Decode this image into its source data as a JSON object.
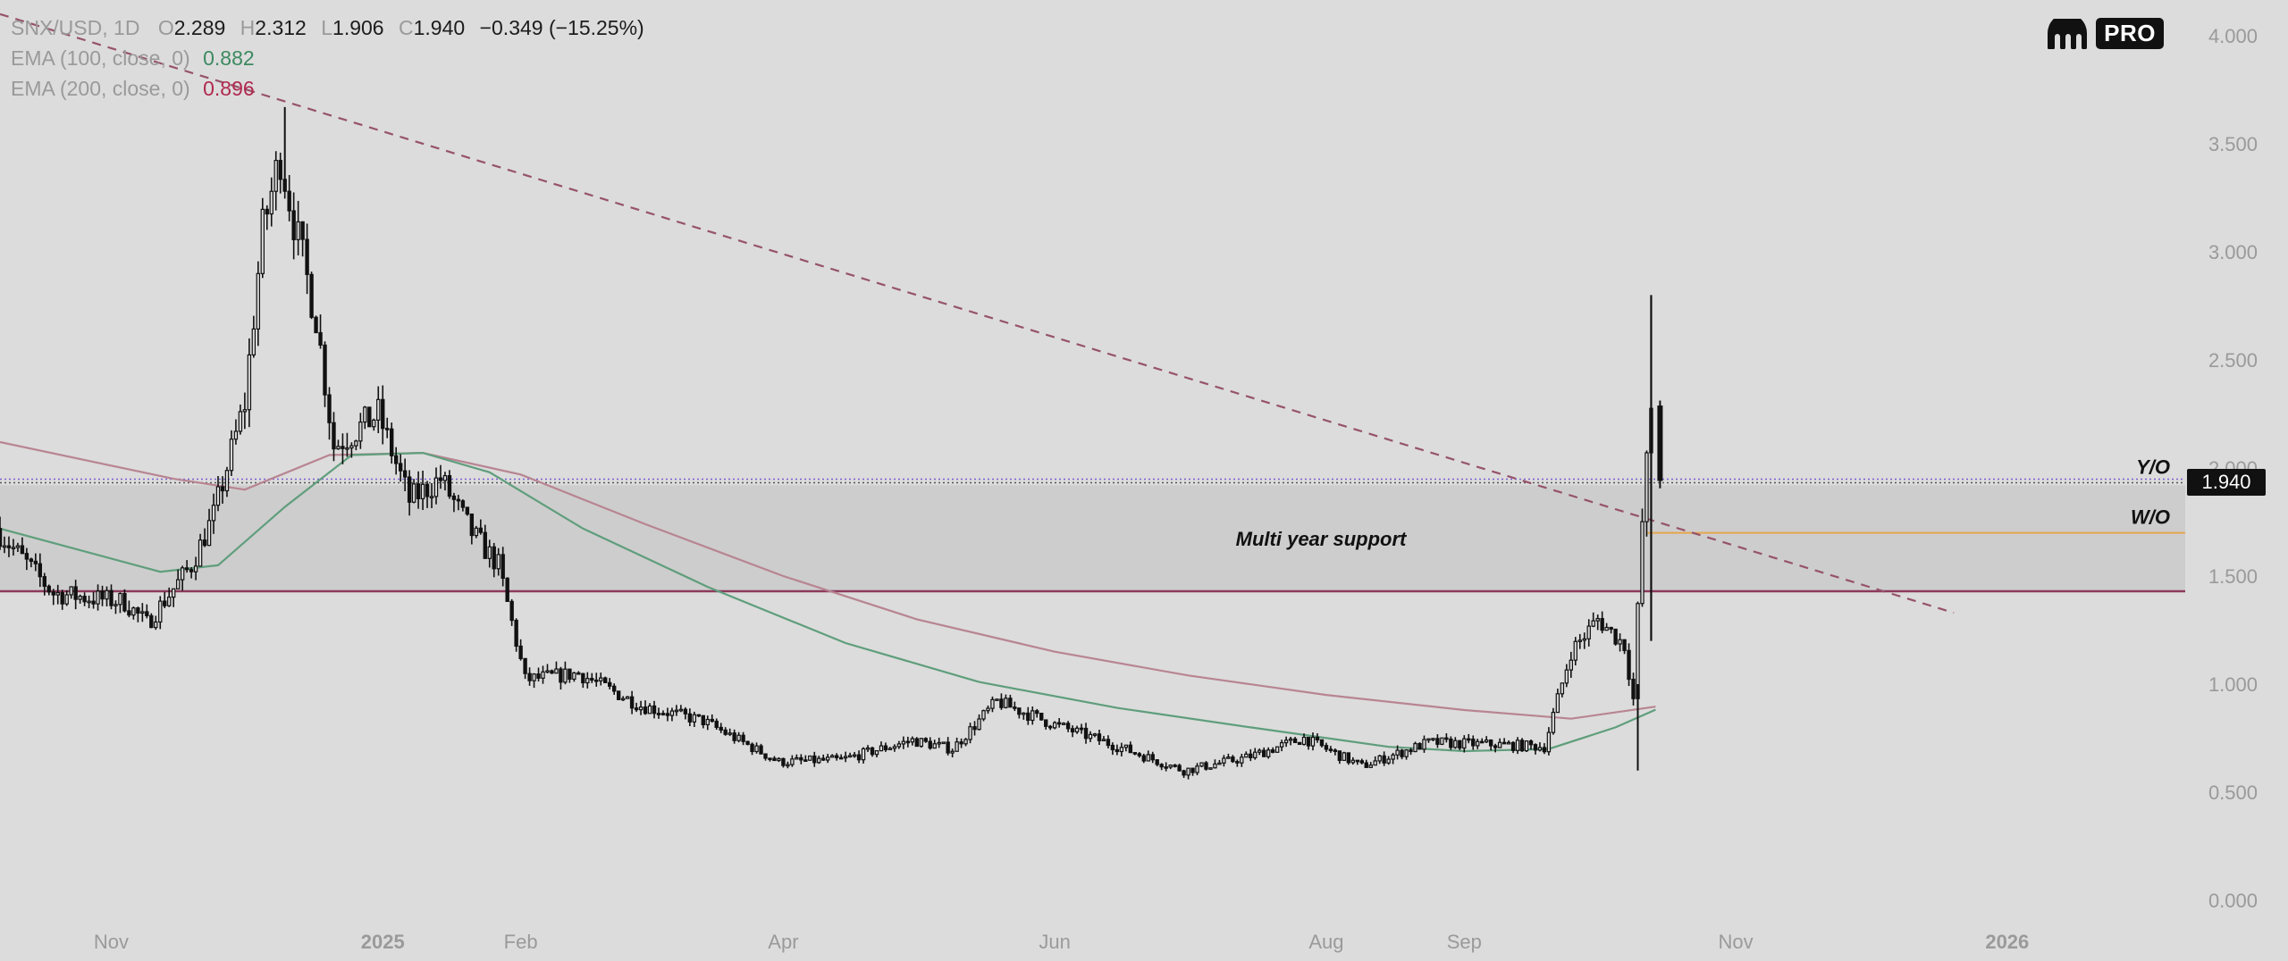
{
  "legend": {
    "symbol": "SNX/USD, 1D",
    "open_label": "O",
    "open": "2.289",
    "high_label": "H",
    "high": "2.312",
    "low_label": "L",
    "low": "1.906",
    "close_label": "C",
    "close": "1.940",
    "change": "−0.349 (−15.25%)",
    "ema100_label": "EMA (100, close, 0)",
    "ema100_value": "0.882",
    "ema200_label": "EMA (200, close, 0)",
    "ema200_value": "0.896"
  },
  "brand": {
    "logo_icon": "kraken-logo-icon",
    "badge": "PRO"
  },
  "price_tag": "1.940",
  "colors": {
    "background": "#dcdcdc",
    "support_band": "#cdcdcd",
    "ema100": "#5f9e7c",
    "ema200": "#b88592",
    "trendline": "#96536a",
    "support_line": "#8c3a5c",
    "yo_line": "#7b5fd0",
    "wo_line": "#e6a550",
    "candles": "#111111",
    "axis_text": "#9a9a9a"
  },
  "chart_data": {
    "type": "candlestick",
    "title": "SNX/USD, 1D",
    "ylim": [
      0.0,
      4.0
    ],
    "y_ticks": [
      "0.000",
      "0.500",
      "1.000",
      "1.500",
      "2.000",
      "2.500",
      "3.000",
      "3.500",
      "4.000"
    ],
    "x_ticks": [
      "Nov",
      "2025",
      "Feb",
      "Apr",
      "Jun",
      "Aug",
      "Sep",
      "Nov",
      "2026"
    ],
    "x_range": [
      "2024-10-07",
      "2026-02-10"
    ],
    "price_path": [
      [
        "2024-10-07",
        1.72
      ],
      [
        "2024-10-20",
        1.42
      ],
      [
        "2024-11-05",
        1.38
      ],
      [
        "2024-11-10",
        1.28
      ],
      [
        "2024-11-20",
        1.55
      ],
      [
        "2024-11-25",
        1.78
      ],
      [
        "2024-12-02",
        2.3
      ],
      [
        "2024-12-06",
        3.1
      ],
      [
        "2024-12-10",
        3.45
      ],
      [
        "2024-12-14",
        3.05
      ],
      [
        "2024-12-18",
        2.7
      ],
      [
        "2024-12-22",
        2.1
      ],
      [
        "2025-01-01",
        2.25
      ],
      [
        "2025-01-08",
        1.85
      ],
      [
        "2025-01-15",
        1.95
      ],
      [
        "2025-01-22",
        1.7
      ],
      [
        "2025-01-28",
        1.55
      ],
      [
        "2025-02-03",
        1.02
      ],
      [
        "2025-02-15",
        1.05
      ],
      [
        "2025-03-01",
        0.9
      ],
      [
        "2025-03-15",
        0.83
      ],
      [
        "2025-04-01",
        0.64
      ],
      [
        "2025-04-15",
        0.65
      ],
      [
        "2025-05-01",
        0.74
      ],
      [
        "2025-05-10",
        0.7
      ],
      [
        "2025-05-20",
        0.92
      ],
      [
        "2025-06-01",
        0.82
      ],
      [
        "2025-06-15",
        0.72
      ],
      [
        "2025-07-01",
        0.6
      ],
      [
        "2025-07-15",
        0.66
      ],
      [
        "2025-07-28",
        0.75
      ],
      [
        "2025-08-10",
        0.62
      ],
      [
        "2025-08-25",
        0.73
      ],
      [
        "2025-09-10",
        0.72
      ],
      [
        "2025-09-20",
        0.71
      ],
      [
        "2025-09-26",
        1.15
      ],
      [
        "2025-10-02",
        1.3
      ],
      [
        "2025-10-08",
        1.18
      ],
      [
        "2025-10-10",
        0.93
      ],
      [
        "2025-10-12",
        1.75
      ],
      [
        "2025-10-14",
        2.29
      ],
      [
        "2025-10-15",
        1.94
      ]
    ],
    "last_candle": {
      "open": 2.289,
      "high": 2.312,
      "low": 1.906,
      "close": 1.94
    },
    "spike_high": 2.8,
    "peak_high": 3.67,
    "series": [
      {
        "name": "EMA (100, close, 0)",
        "values": [
          [
            "2024-10-07",
            1.72
          ],
          [
            "2024-11-12",
            1.52
          ],
          [
            "2024-11-25",
            1.55
          ],
          [
            "2024-12-10",
            1.82
          ],
          [
            "2024-12-25",
            2.06
          ],
          [
            "2025-01-10",
            2.07
          ],
          [
            "2025-01-25",
            1.98
          ],
          [
            "2025-02-15",
            1.72
          ],
          [
            "2025-03-15",
            1.45
          ],
          [
            "2025-04-15",
            1.19
          ],
          [
            "2025-05-15",
            1.01
          ],
          [
            "2025-06-15",
            0.89
          ],
          [
            "2025-07-15",
            0.8
          ],
          [
            "2025-08-15",
            0.71
          ],
          [
            "2025-09-01",
            0.69
          ],
          [
            "2025-09-20",
            0.7
          ],
          [
            "2025-10-05",
            0.8
          ],
          [
            "2025-10-14",
            0.882
          ]
        ]
      },
      {
        "name": "EMA (200, close, 0)",
        "values": [
          [
            "2024-10-07",
            2.12
          ],
          [
            "2024-11-15",
            1.95
          ],
          [
            "2024-12-01",
            1.9
          ],
          [
            "2024-12-20",
            2.06
          ],
          [
            "2025-01-10",
            2.07
          ],
          [
            "2025-02-01",
            1.97
          ],
          [
            "2025-03-01",
            1.74
          ],
          [
            "2025-04-01",
            1.5
          ],
          [
            "2025-05-01",
            1.3
          ],
          [
            "2025-06-01",
            1.15
          ],
          [
            "2025-07-01",
            1.04
          ],
          [
            "2025-08-01",
            0.95
          ],
          [
            "2025-09-01",
            0.88
          ],
          [
            "2025-09-25",
            0.84
          ],
          [
            "2025-10-14",
            0.896
          ]
        ]
      }
    ],
    "trendline": [
      [
        "2024-10-07",
        4.1
      ],
      [
        "2025-12-20",
        1.33
      ]
    ],
    "levels": [
      {
        "name": "Y/O",
        "value": 1.94
      },
      {
        "name": "W/O",
        "value": 1.7
      },
      {
        "name": "Multi year support",
        "from": 1.43,
        "to": 1.92
      }
    ],
    "grid": false
  },
  "annotations": {
    "support_label": "Multi year support",
    "yo_label": "Y/O",
    "wo_label": "W/O"
  }
}
